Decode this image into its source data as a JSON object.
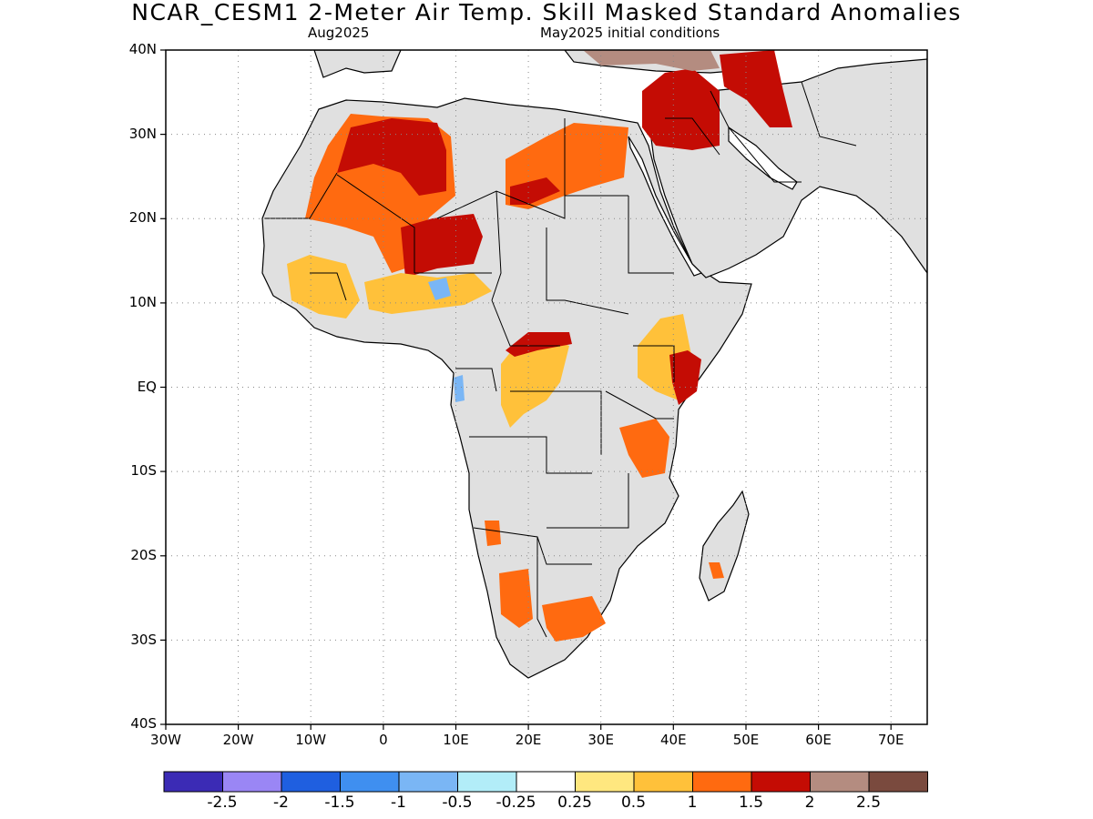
{
  "title": "NCAR_CESM1 2-Meter Air Temp. Skill Masked Standard Anomalies",
  "subtitle_left": "Aug2025",
  "subtitle_right": "May2025 initial conditions",
  "map": {
    "lon_range": [
      -30,
      75
    ],
    "lat_range": [
      -40,
      40
    ],
    "lat_labels": [
      "40N",
      "30N",
      "20N",
      "10N",
      "EQ",
      "10S",
      "20S",
      "30S",
      "40S"
    ],
    "lon_labels": [
      "30W",
      "20W",
      "10W",
      "0",
      "10E",
      "20E",
      "30E",
      "40E",
      "50E",
      "60E",
      "70E"
    ],
    "land_color": "#e0e0e0",
    "grid": "dotted"
  },
  "colorbar": {
    "colors": [
      "#3b2bb5",
      "#9a86f5",
      "#1f5fe0",
      "#3f8ff0",
      "#7ab6f5",
      "#b2edf8",
      "#ffffff",
      "#ffe77f",
      "#ffc13a",
      "#ff6a10",
      "#c40c04",
      "#b48c80",
      "#7a4a3e"
    ],
    "labels": [
      "-2.5",
      "-2",
      "-1.5",
      "-1",
      "-0.5",
      "-0.25",
      "0.25",
      "0.5",
      "1",
      "1.5",
      "2",
      "2.5"
    ]
  },
  "anomaly_regions": [
    {
      "name": "Northwest Africa",
      "level": 1.5,
      "color": "#ff6a10"
    },
    {
      "name": "Algeria/Mali core",
      "level": 2,
      "color": "#c40c04"
    },
    {
      "name": "Libya/Egypt",
      "level": 1.5,
      "color": "#ff6a10"
    },
    {
      "name": "Middle East",
      "level": 2,
      "color": "#c40c04"
    },
    {
      "name": "Sahel",
      "level": 1,
      "color": "#ffc13a"
    },
    {
      "name": "Central Africa",
      "level": 1,
      "color": "#ffc13a"
    },
    {
      "name": "East Africa",
      "level": 1.5,
      "color": "#ff6a10"
    },
    {
      "name": "Southern Africa",
      "level": 1.5,
      "color": "#ff6a10"
    }
  ]
}
